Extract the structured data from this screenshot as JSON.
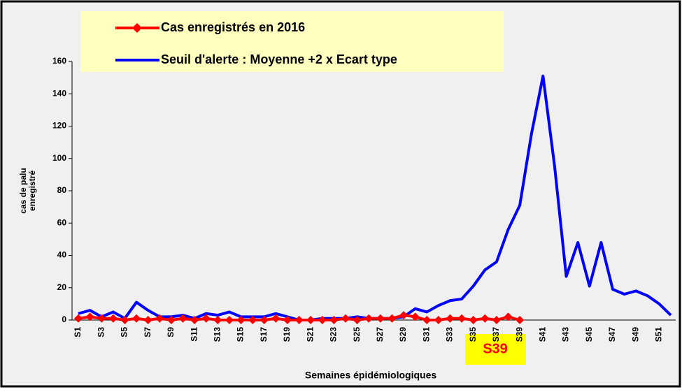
{
  "chart_data": {
    "type": "line",
    "categories": [
      "S1",
      null,
      "S3",
      null,
      "S5",
      null,
      "S7",
      null,
      "S9",
      null,
      "S11",
      null,
      "S13",
      null,
      "S15",
      null,
      "S17",
      null,
      "S19",
      null,
      "S21",
      null,
      "S23",
      null,
      "S25",
      null,
      "S27",
      null,
      "S29",
      null,
      "S31",
      null,
      "S33",
      null,
      "S35",
      null,
      "S37",
      null,
      "S39",
      null,
      "S41",
      null,
      "S43",
      null,
      "S45",
      null,
      "S47",
      null,
      "S49",
      null,
      "S51",
      null
    ],
    "series": [
      {
        "name": "Cas enregistrés en 2016",
        "color": "#ff0000",
        "marker": "diamond",
        "values": [
          1,
          2,
          1,
          1,
          0,
          1,
          0,
          1,
          0,
          1,
          0,
          1,
          0,
          0,
          0,
          0,
          0,
          1,
          0,
          0,
          0,
          0,
          0,
          1,
          0,
          1,
          1,
          1,
          3,
          2,
          0,
          0,
          1,
          1,
          0,
          1,
          0,
          2,
          0,
          null,
          null,
          null,
          null,
          null,
          null,
          null,
          null,
          null,
          null,
          null,
          null,
          null
        ]
      },
      {
        "name": "Seuil d'alerte : Moyenne +2 x Ecart type",
        "color": "#0000ff",
        "values": [
          4,
          6,
          2,
          5,
          1,
          11,
          6,
          2,
          2,
          3,
          1,
          4,
          3,
          5,
          2,
          2,
          2,
          4,
          2,
          0,
          0,
          1,
          1,
          1,
          2,
          1,
          1,
          1,
          2,
          7,
          5,
          9,
          12,
          13,
          21,
          31,
          36,
          56,
          71,
          115,
          151,
          95,
          27,
          48,
          21,
          48,
          19,
          16,
          18,
          15,
          10,
          3
        ]
      }
    ],
    "ylim": [
      0,
      160
    ],
    "yticks": [
      0,
      20,
      40,
      60,
      80,
      100,
      120,
      140,
      160
    ],
    "x_label": "Semaines épidémiologiques",
    "y_label": [
      "cas de palu",
      "enregistré"
    ],
    "annotation": "S39"
  }
}
